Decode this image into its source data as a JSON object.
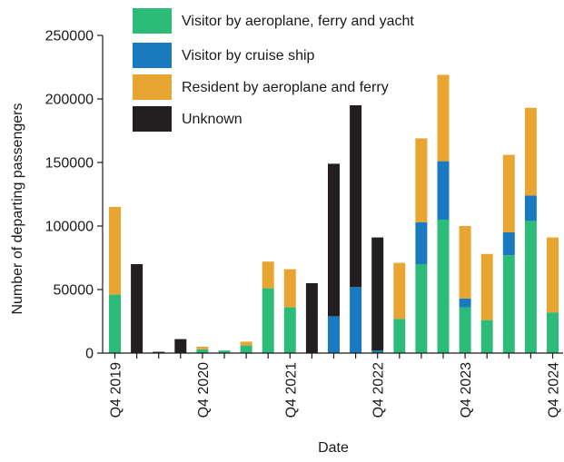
{
  "chart_data": {
    "type": "bar",
    "stacked": true,
    "title": "",
    "xlabel": "Date",
    "ylabel": "Number of departing passengers",
    "ylim": [
      0,
      250000
    ],
    "yticks": [
      "0",
      "50000",
      "100000",
      "150000",
      "200000",
      "250000"
    ],
    "ytick_values": [
      0,
      50000,
      100000,
      150000,
      200000,
      250000
    ],
    "x": [
      "Q4 2019",
      "Q1 2020",
      "Q2 2020",
      "Q3 2020",
      "Q4 2020",
      "Q1 2021",
      "Q2 2021",
      "Q3 2021",
      "Q4 2021",
      "Q1 2022",
      "Q2 2022",
      "Q3 2022",
      "Q4 2022",
      "Q1 2023",
      "Q2 2023",
      "Q3 2023",
      "Q4 2023",
      "Q1 2024",
      "Q2 2024",
      "Q3 2024",
      "Q4 2024"
    ],
    "xtick_labels": [
      "Q4 2019",
      "",
      "",
      "",
      "Q4 2020",
      "",
      "",
      "",
      "Q4 2021",
      "",
      "",
      "",
      "Q4 2022",
      "",
      "",
      "",
      "Q4 2023",
      "",
      "",
      "",
      "Q4 2024"
    ],
    "legend_position": "top",
    "series": [
      {
        "name": "Visitor by aeroplane, ferry and yacht",
        "color": "#2dbb7a",
        "values": [
          46000,
          0,
          0,
          0,
          3000,
          2000,
          6000,
          51000,
          36000,
          0,
          0,
          0,
          0,
          27000,
          70000,
          105000,
          36000,
          26000,
          77000,
          104000,
          32000
        ]
      },
      {
        "name": "Visitor by cruise ship",
        "color": "#1a7ac0",
        "values": [
          0,
          0,
          0,
          0,
          0,
          0,
          0,
          0,
          0,
          0,
          29000,
          52000,
          2000,
          0,
          33000,
          46000,
          7000,
          0,
          18000,
          20000,
          0
        ]
      },
      {
        "name": "Resident by aeroplane and ferry",
        "color": "#e8a531",
        "values": [
          69000,
          0,
          0,
          0,
          2000,
          0,
          3000,
          21000,
          30000,
          0,
          0,
          0,
          0,
          44000,
          66000,
          68000,
          57000,
          52000,
          61000,
          69000,
          59000
        ]
      },
      {
        "name": "Unknown",
        "color": "#231f20",
        "values": [
          0,
          70000,
          1000,
          11000,
          0,
          0,
          0,
          0,
          0,
          55000,
          120000,
          143000,
          89000,
          0,
          0,
          0,
          0,
          0,
          0,
          0,
          0
        ]
      }
    ]
  }
}
